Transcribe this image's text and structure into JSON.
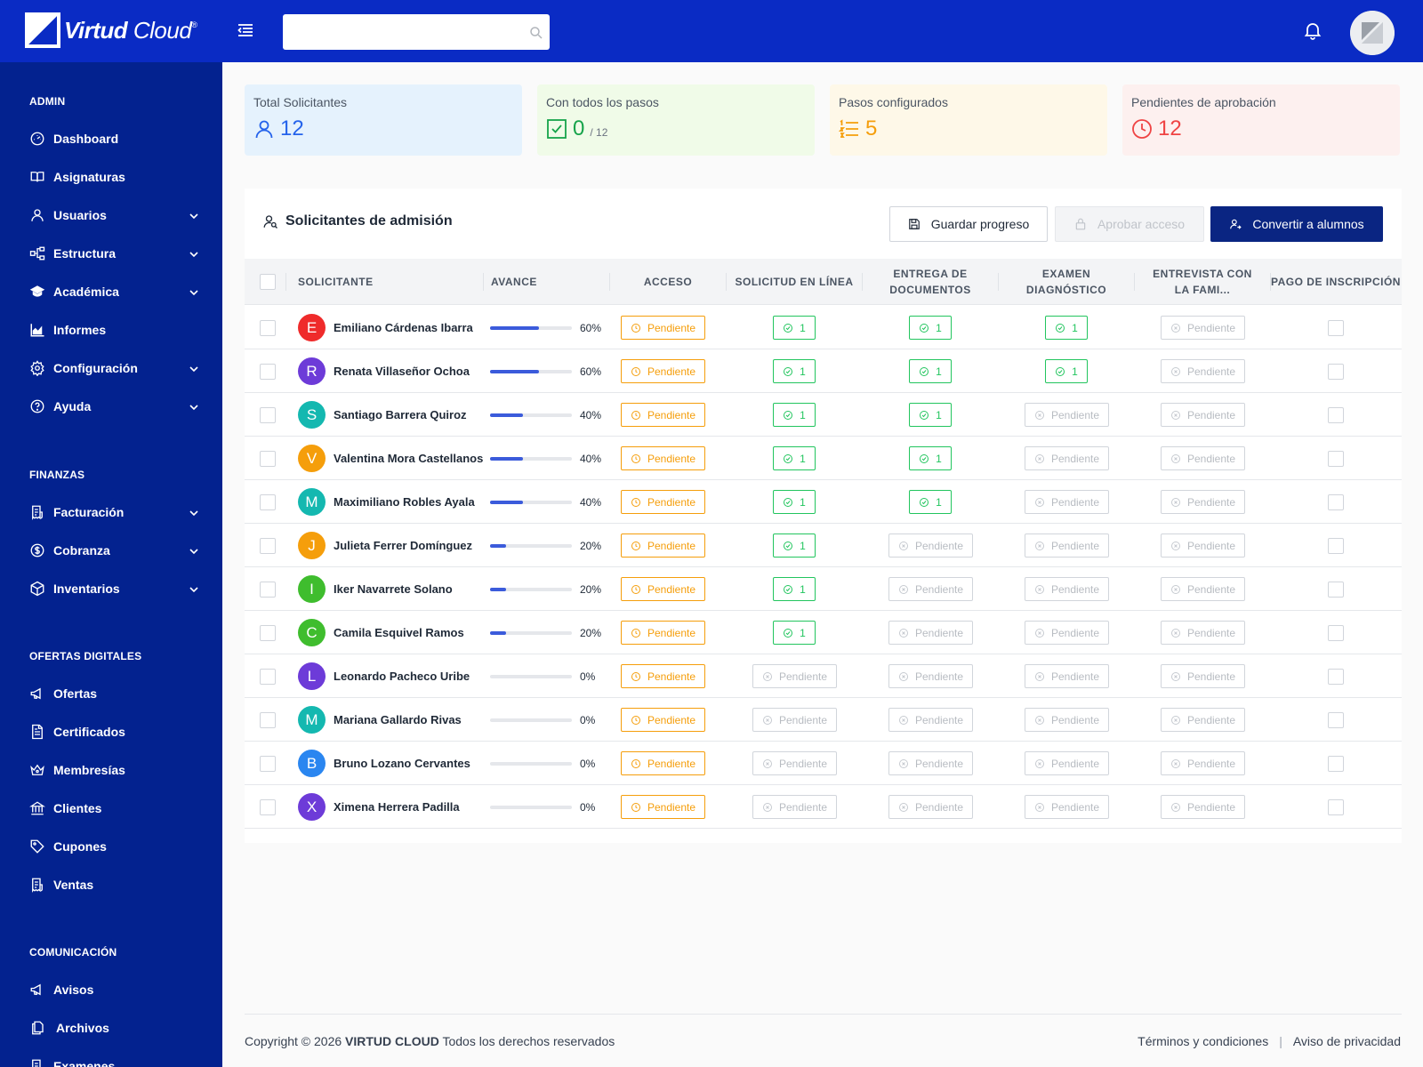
{
  "brand": {
    "name_bold": "Virtud",
    "name_light": "Cloud",
    "mark": "®"
  },
  "search": {
    "placeholder": ""
  },
  "sidebar": {
    "sections": [
      {
        "title": "ADMIN",
        "items": [
          {
            "label": "Dashboard",
            "icon": "dashboard-icon",
            "expandable": false
          },
          {
            "label": "Asignaturas",
            "icon": "book-icon",
            "expandable": false
          },
          {
            "label": "Usuarios",
            "icon": "user-icon",
            "expandable": true
          },
          {
            "label": "Estructura",
            "icon": "hierarchy-icon",
            "expandable": true
          },
          {
            "label": "Académica",
            "icon": "graduation-cap-icon",
            "expandable": true
          },
          {
            "label": "Informes",
            "icon": "chart-icon",
            "expandable": false
          },
          {
            "label": "Configuración",
            "icon": "gear-icon",
            "expandable": true
          },
          {
            "label": "Ayuda",
            "icon": "help-icon",
            "expandable": true
          }
        ]
      },
      {
        "title": "FINANZAS",
        "items": [
          {
            "label": "Facturación",
            "icon": "invoice-icon",
            "expandable": true
          },
          {
            "label": "Cobranza",
            "icon": "dollar-icon",
            "expandable": true
          },
          {
            "label": "Inventarios",
            "icon": "box-icon",
            "expandable": true
          }
        ]
      },
      {
        "title": "OFERTAS DIGITALES",
        "items": [
          {
            "label": "Ofertas",
            "icon": "megaphone-icon",
            "expandable": false
          },
          {
            "label": "Certificados",
            "icon": "certificate-icon",
            "expandable": false
          },
          {
            "label": "Membresías",
            "icon": "crown-icon",
            "expandable": false
          },
          {
            "label": "Clientes",
            "icon": "bank-icon",
            "expandable": false
          },
          {
            "label": "Cupones",
            "icon": "tag-icon",
            "expandable": false
          },
          {
            "label": "Ventas",
            "icon": "receipt-icon",
            "expandable": false
          }
        ]
      },
      {
        "title": "COMUNICACIÓN",
        "items": [
          {
            "label": "Avisos",
            "icon": "megaphone-icon",
            "expandable": false
          },
          {
            "label": "Archivos",
            "icon": "files-icon",
            "expandable": false
          },
          {
            "label": "Examenes",
            "icon": "exam-icon",
            "expandable": false
          }
        ]
      }
    ]
  },
  "stats": [
    {
      "label": "Total Solicitantes",
      "value": "12",
      "sub": "",
      "icon": "user-icon",
      "color": "#2563eb",
      "bg": "#e5f2fd"
    },
    {
      "label": "Con todos los pasos",
      "value": "0",
      "sub": "/ 12",
      "icon": "check-square-icon",
      "color": "#16a34a",
      "bg": "#f0fbe8"
    },
    {
      "label": "Pasos configurados",
      "value": "5",
      "sub": "",
      "icon": "list-icon",
      "color": "#f59e0b",
      "bg": "#fef8e8"
    },
    {
      "label": "Pendientes de aprobación",
      "value": "12",
      "sub": "",
      "icon": "clock-icon",
      "color": "#ef4444",
      "bg": "#fdf0ef"
    }
  ],
  "panel": {
    "title": "Solicitantes de admisión",
    "buttons": {
      "save": "Guardar progreso",
      "approve": "Aprobar acceso",
      "convert": "Convertir a alumnos"
    }
  },
  "table": {
    "columns": [
      "SOLICITANTE",
      "AVANCE",
      "ACCESO",
      "SOLICITUD EN LÍNEA",
      "ENTREGA DE DOCUMENTOS",
      "EXAMEN DIAGNÓSTICO",
      "ENTREVISTA CON LA FAMI...",
      "PAGO DE INSCRIPCIÓN"
    ],
    "pending_label": "Pendiente",
    "done_label": "1",
    "rows": [
      {
        "initial": "E",
        "name": "Emiliano Cárdenas Ibarra",
        "color": "#ef2b2b",
        "progress": 60,
        "progress_label": "60%",
        "steps": [
          true,
          true,
          true,
          false
        ]
      },
      {
        "initial": "R",
        "name": "Renata Villaseñor Ochoa",
        "color": "#6d3bd8",
        "progress": 60,
        "progress_label": "60%",
        "steps": [
          true,
          true,
          true,
          false
        ]
      },
      {
        "initial": "S",
        "name": "Santiago Barrera Quiroz",
        "color": "#14b8b0",
        "progress": 40,
        "progress_label": "40%",
        "steps": [
          true,
          true,
          false,
          false
        ]
      },
      {
        "initial": "V",
        "name": "Valentina Mora Castellanos",
        "color": "#f59e0b",
        "progress": 40,
        "progress_label": "40%",
        "steps": [
          true,
          true,
          false,
          false
        ]
      },
      {
        "initial": "M",
        "name": "Maximiliano Robles Ayala",
        "color": "#14b8b0",
        "progress": 40,
        "progress_label": "40%",
        "steps": [
          true,
          true,
          false,
          false
        ]
      },
      {
        "initial": "J",
        "name": "Julieta Ferrer Domínguez",
        "color": "#f59e0b",
        "progress": 20,
        "progress_label": "20%",
        "steps": [
          true,
          false,
          false,
          false
        ]
      },
      {
        "initial": "I",
        "name": "Iker Navarrete Solano",
        "color": "#3fbd2e",
        "progress": 20,
        "progress_label": "20%",
        "steps": [
          true,
          false,
          false,
          false
        ]
      },
      {
        "initial": "C",
        "name": "Camila Esquivel Ramos",
        "color": "#3fbd2e",
        "progress": 20,
        "progress_label": "20%",
        "steps": [
          true,
          false,
          false,
          false
        ]
      },
      {
        "initial": "L",
        "name": "Leonardo Pacheco Uribe",
        "color": "#6d3bd8",
        "progress": 0,
        "progress_label": "0%",
        "steps": [
          false,
          false,
          false,
          false
        ]
      },
      {
        "initial": "M",
        "name": "Mariana Gallardo Rivas",
        "color": "#14b8b0",
        "progress": 0,
        "progress_label": "0%",
        "steps": [
          false,
          false,
          false,
          false
        ]
      },
      {
        "initial": "B",
        "name": "Bruno Lozano Cervantes",
        "color": "#2a86f0",
        "progress": 0,
        "progress_label": "0%",
        "steps": [
          false,
          false,
          false,
          false
        ]
      },
      {
        "initial": "X",
        "name": "Ximena Herrera Padilla",
        "color": "#6d3bd8",
        "progress": 0,
        "progress_label": "0%",
        "steps": [
          false,
          false,
          false,
          false
        ]
      }
    ]
  },
  "footer": {
    "copyright": "Copyright © 2026",
    "company": "VIRTUD CLOUD",
    "rights": "Todos los derechos reservados",
    "terms": "Términos y condiciones",
    "privacy": "Aviso de privacidad"
  }
}
